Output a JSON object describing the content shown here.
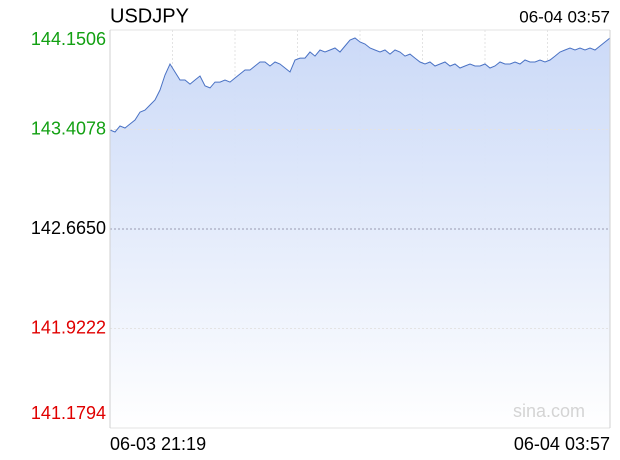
{
  "chart_data": {
    "type": "line",
    "title": "USDJPY",
    "timestamp": "06-04 03:57",
    "watermark": "sina.com",
    "categories": [
      "06-03 21:19",
      null,
      null,
      null,
      null,
      null,
      null,
      null,
      null,
      null,
      null,
      null,
      null,
      null,
      null,
      null,
      null,
      null,
      null,
      null,
      null,
      null,
      null,
      null,
      null,
      null,
      null,
      null,
      null,
      null,
      null,
      null,
      null,
      null,
      null,
      null,
      null,
      null,
      null,
      null,
      null,
      null,
      null,
      null,
      null,
      null,
      null,
      null,
      null,
      null,
      null,
      null,
      null,
      null,
      null,
      null,
      null,
      null,
      null,
      null,
      null,
      null,
      null,
      null,
      null,
      null,
      null,
      null,
      null,
      null,
      null,
      null,
      null,
      null,
      null,
      null,
      null,
      null,
      null,
      null,
      null,
      null,
      null,
      null,
      null,
      null,
      null,
      null,
      null,
      null,
      null,
      null,
      null,
      null,
      null,
      null,
      null,
      null,
      null,
      null,
      "06-04 03:57"
    ],
    "values": [
      143.404,
      143.389,
      143.434,
      143.419,
      143.449,
      143.479,
      143.538,
      143.553,
      143.591,
      143.628,
      143.703,
      143.815,
      143.897,
      143.837,
      143.777,
      143.777,
      143.747,
      143.777,
      143.807,
      143.733,
      143.718,
      143.762,
      143.762,
      143.777,
      143.762,
      143.792,
      143.822,
      143.852,
      143.852,
      143.882,
      143.912,
      143.912,
      143.882,
      143.912,
      143.897,
      143.867,
      143.837,
      143.927,
      143.941,
      143.941,
      143.986,
      143.956,
      144.001,
      143.986,
      144.001,
      144.016,
      143.986,
      144.031,
      144.076,
      144.091,
      144.061,
      144.046,
      144.016,
      144.001,
      143.986,
      144.001,
      143.971,
      144.001,
      143.986,
      143.956,
      143.971,
      143.941,
      143.912,
      143.897,
      143.912,
      143.882,
      143.897,
      143.912,
      143.882,
      143.897,
      143.867,
      143.882,
      143.897,
      143.882,
      143.882,
      143.897,
      143.867,
      143.882,
      143.912,
      143.897,
      143.897,
      143.912,
      143.897,
      143.927,
      143.912,
      143.912,
      143.927,
      143.912,
      143.927,
      143.956,
      143.986,
      144.001,
      144.016,
      144.001,
      144.016,
      144.001,
      144.016,
      144.001,
      144.031,
      144.061,
      144.091
    ],
    "color": "#4a72c4",
    "fill_color": "#c9d8f7",
    "ylim": [
      141.1794,
      144.1506
    ],
    "yticks": [
      {
        "value": 141.1794,
        "label": "141.1794"
      },
      {
        "value": 141.9222,
        "label": "141.9222"
      },
      {
        "value": 142.665,
        "label": "142.6650"
      },
      {
        "value": 143.4078,
        "label": "143.4078"
      },
      {
        "value": 144.1506,
        "label": "144.1506"
      }
    ],
    "ytick_colors": [
      "#e00000",
      "#e00000",
      "#000000",
      "#12a012",
      "#12a012"
    ],
    "grid": true
  }
}
